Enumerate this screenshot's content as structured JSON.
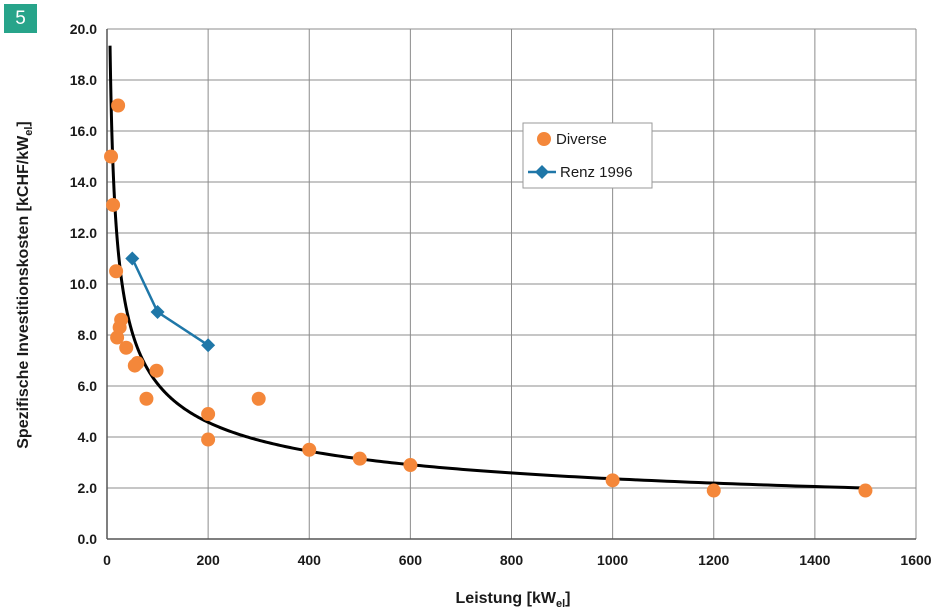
{
  "figure": {
    "number": "5"
  },
  "chart_data": {
    "type": "scatter",
    "title": "",
    "xlabel": {
      "main": "Leistung [kW",
      "sub": "el",
      "close": "]"
    },
    "ylabel": {
      "main": "Spezifische Investitionskosten [kCHF/kW",
      "sub": "el",
      "close": "]"
    },
    "xlim": [
      0,
      1600
    ],
    "ylim": [
      0,
      20
    ],
    "x_ticks": [
      0,
      200,
      400,
      600,
      800,
      1000,
      1200,
      1400,
      1600
    ],
    "y_ticks": [
      0,
      2,
      4,
      6,
      8,
      10,
      12,
      14,
      16,
      18,
      20
    ],
    "x_tick_labels": [
      "0",
      "200",
      "400",
      "600",
      "800",
      "1000",
      "1200",
      "1400",
      "1600"
    ],
    "y_tick_labels": [
      "0.0",
      "2.0",
      "4.0",
      "6.0",
      "8.0",
      "10.0",
      "12.0",
      "14.0",
      "16.0",
      "18.0",
      "20.0"
    ],
    "grid": true,
    "legend_position": "top-right",
    "series": [
      {
        "name": "Diverse",
        "kind": "scatter",
        "color": "#f4873a",
        "points": [
          [
            8,
            15.0
          ],
          [
            12,
            13.1
          ],
          [
            18,
            10.5
          ],
          [
            22,
            17.0
          ],
          [
            20,
            7.9
          ],
          [
            25,
            8.3
          ],
          [
            28,
            8.6
          ],
          [
            38,
            7.5
          ],
          [
            60,
            6.9
          ],
          [
            55,
            6.8
          ],
          [
            78,
            5.5
          ],
          [
            98,
            6.6
          ],
          [
            200,
            4.9
          ],
          [
            200,
            3.9
          ],
          [
            300,
            5.5
          ],
          [
            400,
            3.5
          ],
          [
            500,
            3.15
          ],
          [
            600,
            2.9
          ],
          [
            1000,
            2.3
          ],
          [
            1200,
            1.9
          ],
          [
            1500,
            1.9
          ]
        ]
      },
      {
        "name": "Renz 1996",
        "kind": "line-diamond",
        "color": "#1f77a8",
        "points": [
          [
            50,
            11.0
          ],
          [
            100,
            8.9
          ],
          [
            200,
            7.6
          ]
        ]
      },
      {
        "name": "",
        "kind": "trend",
        "color": "#000000",
        "formula": "y = 40.4 * x^(-0.411)",
        "x_range": [
          6,
          1500
        ]
      }
    ]
  }
}
